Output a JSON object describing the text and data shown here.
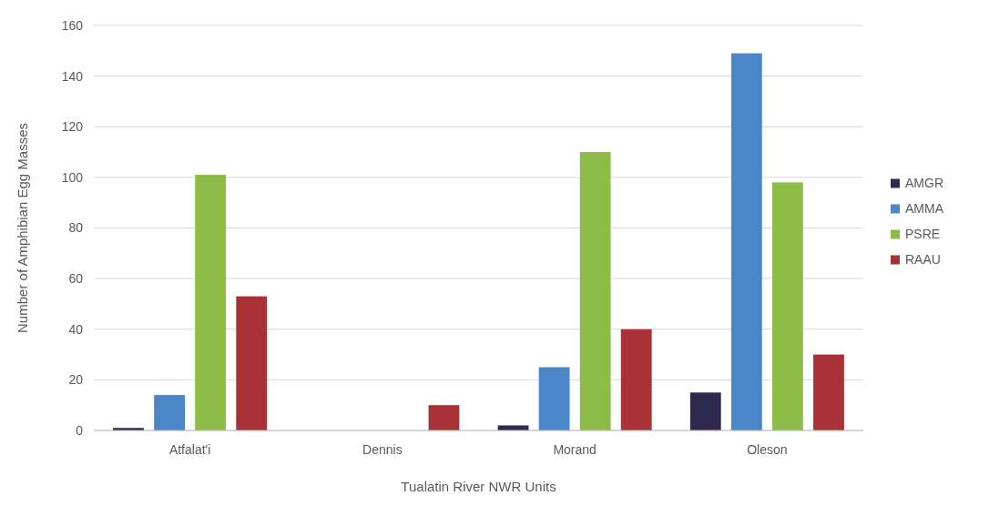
{
  "chart_data": {
    "type": "bar",
    "xlabel": "Tualatin River NWR Units",
    "ylabel": "Number of Amphibian Egg Masses",
    "categories": [
      "Atfalat'i",
      "Dennis",
      "Morand",
      "Oleson"
    ],
    "series": [
      {
        "name": "AMGR",
        "color": "#2e2a4f",
        "values": [
          1,
          0,
          2,
          15
        ]
      },
      {
        "name": "AMMA",
        "color": "#4a86c8",
        "values": [
          14,
          0,
          25,
          149
        ]
      },
      {
        "name": "PSRE",
        "color": "#8dbb48",
        "values": [
          101,
          0,
          110,
          98
        ]
      },
      {
        "name": "RAAU",
        "color": "#a83236",
        "values": [
          53,
          10,
          40,
          30
        ]
      }
    ],
    "ylim": [
      0,
      160
    ],
    "yticks": [
      0,
      20,
      40,
      60,
      80,
      100,
      120,
      140,
      160
    ],
    "grid": "y",
    "legend": "right"
  }
}
